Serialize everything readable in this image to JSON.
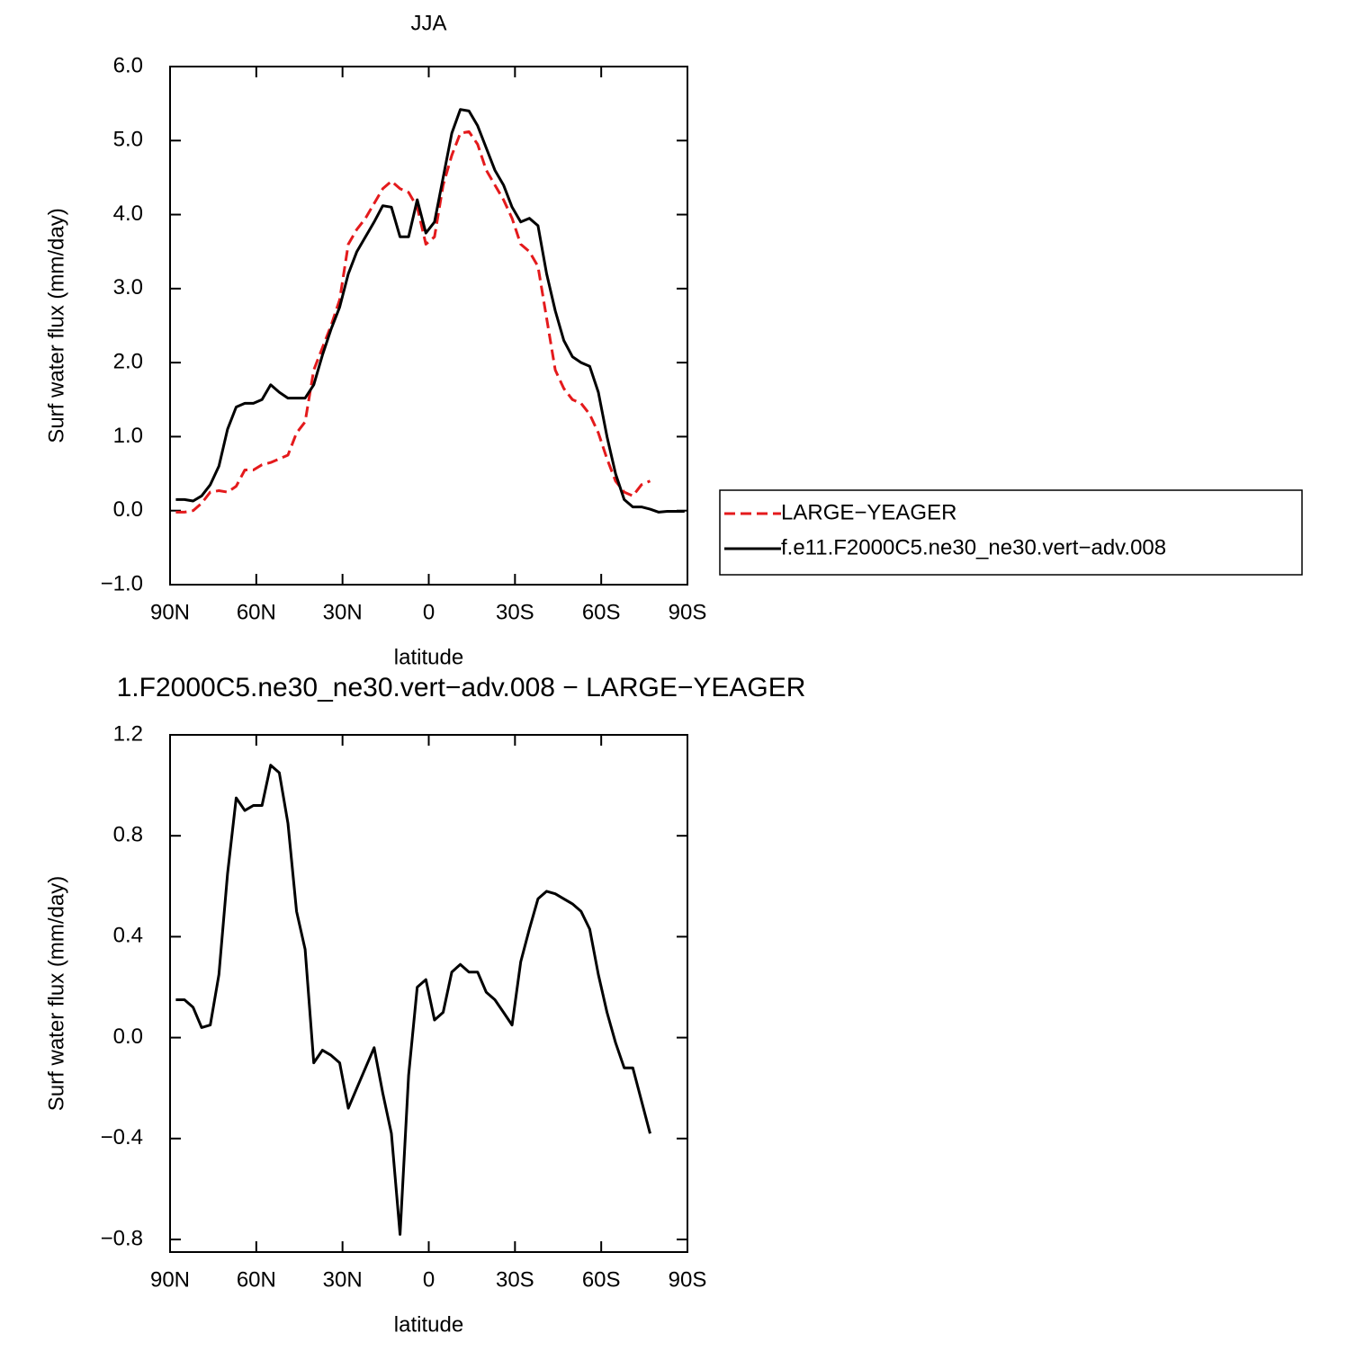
{
  "chart_data": [
    {
      "type": "line",
      "title": "JJA",
      "xlabel": "latitude",
      "ylabel": "Surf water flux (mm/day)",
      "x": [
        88,
        85,
        82,
        79,
        76,
        73,
        70,
        67,
        64,
        61,
        58,
        55,
        52,
        49,
        46,
        43,
        40,
        37,
        34,
        31,
        28,
        25,
        22,
        19,
        16,
        13,
        10,
        7,
        4,
        1,
        -2,
        -5,
        -8,
        -11,
        -14,
        -17,
        -20,
        -23,
        -26,
        -29,
        -32,
        -35,
        -38,
        -41,
        -44,
        -47,
        -50,
        -53,
        -56,
        -59,
        -62,
        -65,
        -68,
        -71,
        -74,
        -77,
        -80,
        -83,
        -86,
        -89
      ],
      "series": [
        {
          "name": "LARGE−YEAGER",
          "color": "#e41a1c",
          "style": "dashed",
          "values": [
            -0.02,
            -0.02,
            0.0,
            0.1,
            0.25,
            0.27,
            0.25,
            0.33,
            0.55,
            0.55,
            0.62,
            0.65,
            0.7,
            0.75,
            1.05,
            1.2,
            1.9,
            2.2,
            2.5,
            2.85,
            3.6,
            3.8,
            3.95,
            4.15,
            4.35,
            4.45,
            4.35,
            4.3,
            4.1,
            3.6,
            3.7,
            4.4,
            4.8,
            5.1,
            5.12,
            4.95,
            4.6,
            4.4,
            4.2,
            3.95,
            3.6,
            3.5,
            3.3,
            2.6,
            1.9,
            1.65,
            1.5,
            1.45,
            1.3,
            1.05,
            0.7,
            0.4,
            0.25,
            0.2,
            0.35,
            0.4,
            null,
            null,
            null,
            null
          ]
        },
        {
          "name": "f.e11.F2000C5.ne30_ne30.vert−adv.008",
          "color": "#000000",
          "style": "solid",
          "values": [
            0.15,
            0.15,
            0.13,
            0.2,
            0.35,
            0.6,
            1.1,
            1.4,
            1.45,
            1.45,
            1.5,
            1.7,
            1.6,
            1.52,
            1.52,
            1.52,
            1.7,
            2.1,
            2.45,
            2.75,
            3.2,
            3.5,
            3.7,
            3.9,
            4.12,
            4.1,
            3.7,
            3.7,
            4.2,
            3.75,
            3.9,
            4.5,
            5.1,
            5.42,
            5.4,
            5.2,
            4.9,
            4.6,
            4.4,
            4.1,
            3.9,
            3.95,
            3.85,
            3.2,
            2.7,
            2.3,
            2.08,
            2.0,
            1.95,
            1.6,
            1.0,
            0.5,
            0.15,
            0.05,
            0.05,
            0.02,
            -0.02,
            -0.01,
            -0.01,
            -0.01
          ]
        }
      ],
      "xlim": [
        90,
        -90
      ],
      "xticks": [
        {
          "value": 90,
          "label": "90N"
        },
        {
          "value": 60,
          "label": "60N"
        },
        {
          "value": 30,
          "label": "30N"
        },
        0,
        {
          "value": -30,
          "label": "30S"
        },
        {
          "value": -60,
          "label": "60S"
        },
        {
          "value": -90,
          "label": "90S"
        }
      ],
      "ylim": [
        -1,
        6
      ],
      "yticks": [
        {
          "value": -1,
          "label": "−1.0"
        },
        {
          "value": 0,
          "label": "0.0"
        },
        {
          "value": 1,
          "label": "1.0"
        },
        {
          "value": 2,
          "label": "2.0"
        },
        {
          "value": 3,
          "label": "3.0"
        },
        {
          "value": 4,
          "label": "4.0"
        },
        {
          "value": 5,
          "label": "5.0"
        },
        {
          "value": 6,
          "label": "6.0"
        }
      ],
      "legend": "right"
    },
    {
      "type": "line",
      "title": "1.F2000C5.ne30_ne30.vert−adv.008 − LARGE−YEAGER",
      "xlabel": "latitude",
      "ylabel": "Surf water flux (mm/day)",
      "x": [
        88,
        85,
        82,
        79,
        76,
        73,
        70,
        67,
        64,
        61,
        58,
        55,
        52,
        49,
        46,
        43,
        40,
        37,
        34,
        31,
        28,
        25,
        22,
        19,
        16,
        13,
        10,
        7,
        4,
        1,
        -2,
        -5,
        -8,
        -11,
        -14,
        -17,
        -20,
        -23,
        -26,
        -29,
        -32,
        -35,
        -38,
        -41,
        -44,
        -47,
        -50,
        -53,
        -56,
        -59,
        -62,
        -65,
        -68,
        -71,
        -74,
        -77,
        -80,
        -83,
        -86,
        -89
      ],
      "series": [
        {
          "color": "#000000",
          "style": "solid",
          "values": [
            0.15,
            0.15,
            0.12,
            0.04,
            0.05,
            0.25,
            0.65,
            0.95,
            0.9,
            0.92,
            0.92,
            1.08,
            1.05,
            0.85,
            0.5,
            0.35,
            -0.1,
            -0.05,
            -0.07,
            -0.1,
            -0.28,
            -0.2,
            -0.12,
            -0.04,
            -0.22,
            -0.38,
            -0.78,
            -0.15,
            0.2,
            0.23,
            0.07,
            0.1,
            0.26,
            0.29,
            0.26,
            0.26,
            0.18,
            0.15,
            0.1,
            0.05,
            0.3,
            0.43,
            0.55,
            0.58,
            0.57,
            0.55,
            0.53,
            0.5,
            0.43,
            0.25,
            0.1,
            -0.02,
            -0.12,
            -0.12,
            -0.25,
            -0.38,
            null,
            null,
            null,
            null
          ]
        }
      ],
      "xlim": [
        90,
        -90
      ],
      "xticks": [
        {
          "value": 90,
          "label": "90N"
        },
        {
          "value": 60,
          "label": "60N"
        },
        {
          "value": 30,
          "label": "30N"
        },
        0,
        {
          "value": -30,
          "label": "30S"
        },
        {
          "value": -60,
          "label": "60S"
        },
        {
          "value": -90,
          "label": "90S"
        }
      ],
      "ylim": [
        -0.85,
        1.2
      ],
      "yticks": [
        {
          "value": -0.8,
          "label": "−0.8"
        },
        {
          "value": -0.4,
          "label": "−0.4"
        },
        {
          "value": 0,
          "label": "0.0"
        },
        0.4,
        0.8,
        1.2
      ]
    }
  ]
}
